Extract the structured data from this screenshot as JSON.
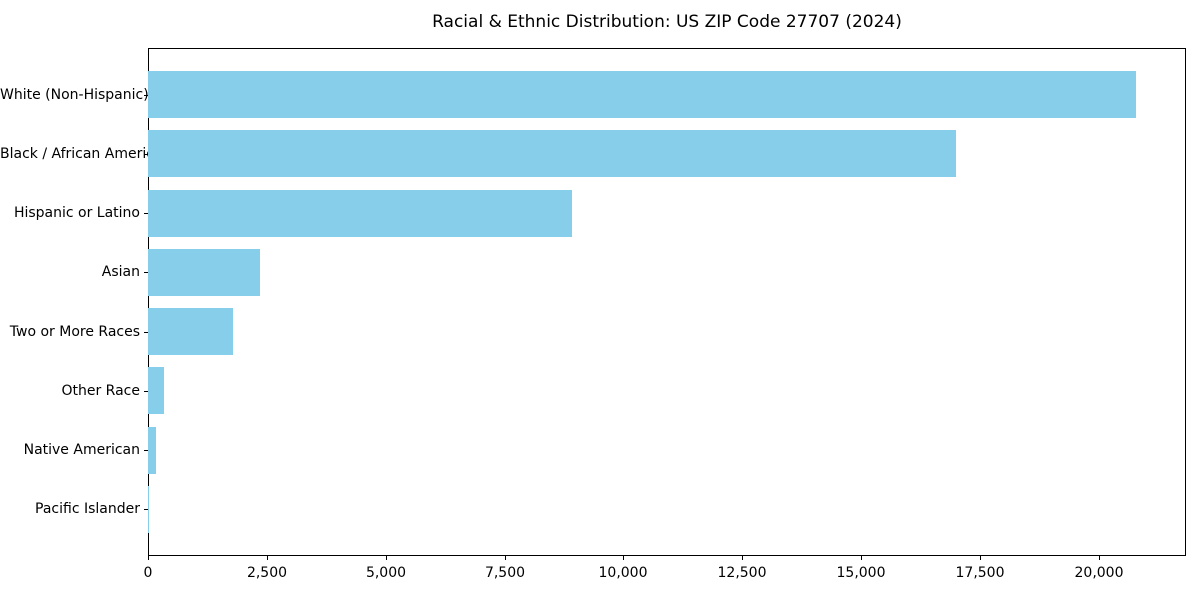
{
  "chart_data": {
    "type": "bar",
    "orientation": "horizontal",
    "title": "Racial & Ethnic Distribution: US ZIP Code 27707 (2024)",
    "categories": [
      "White (Non-Hispanic)",
      "Black / African American",
      "Hispanic or Latino",
      "Asian",
      "Two or More Races",
      "Other Race",
      "Native American",
      "Pacific Islander"
    ],
    "values": [
      20780,
      17000,
      8920,
      2360,
      1790,
      340,
      170,
      20
    ],
    "x_tick_values": [
      0,
      2500,
      5000,
      7500,
      10000,
      12500,
      15000,
      17500,
      20000
    ],
    "x_tick_labels": [
      "0",
      "2,500",
      "5,000",
      "7,500",
      "10,000",
      "12,500",
      "15,000",
      "17,500",
      "20,000"
    ],
    "xlim": [
      0,
      21830
    ],
    "xlabel": "",
    "ylabel": "",
    "grid": false,
    "legend": "none",
    "bar_color": "#87CEEB",
    "axis_color": "#000000",
    "text_color": "#000000",
    "background_color": "#ffffff"
  }
}
